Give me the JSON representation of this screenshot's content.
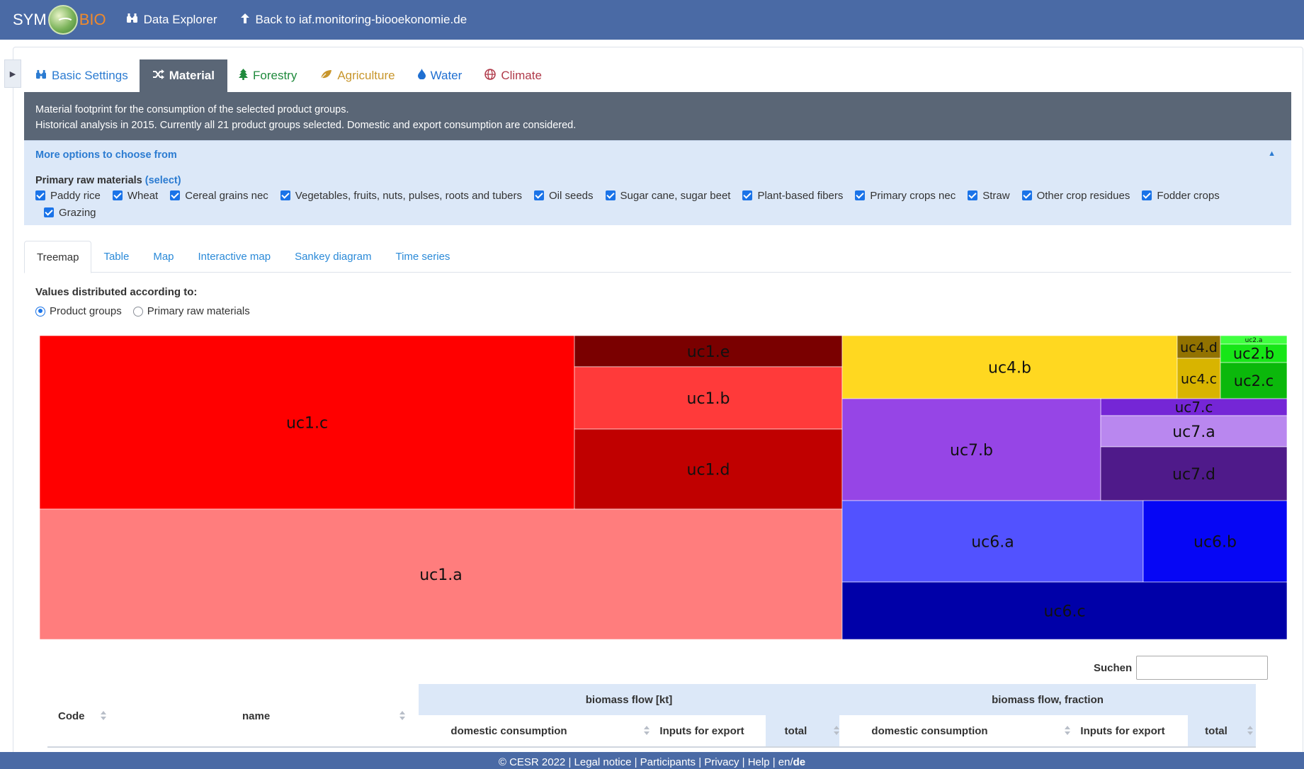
{
  "brand": {
    "left": "SYM",
    "right": "BIO"
  },
  "nav": {
    "data_explorer": "Data Explorer",
    "back": "Back to iaf.monitoring-biooekonomie.de"
  },
  "top_tabs": [
    {
      "label": "Basic Settings",
      "icon": "binoculars-icon",
      "color": "#2b7bd1"
    },
    {
      "label": "Material",
      "icon": "shuffle-icon",
      "color": "#ffffff"
    },
    {
      "label": "Forestry",
      "icon": "tree-icon",
      "color": "#1f8a3c"
    },
    {
      "label": "Agriculture",
      "icon": "leaf-icon",
      "color": "#c8962c"
    },
    {
      "label": "Water",
      "icon": "drop-icon",
      "color": "#1f6fd1"
    },
    {
      "label": "Climate",
      "icon": "globe-icon",
      "color": "#b03a4a"
    }
  ],
  "info": {
    "line1": "Material footprint for the consumption of the selected product groups.",
    "line2": "Historical analysis in 2015. Currently all 21 product groups selected. Domestic and export consumption are considered."
  },
  "options": {
    "header": "More options to choose from",
    "primary_label": "Primary raw materials",
    "select_label": "(select)",
    "materials": [
      "Paddy rice",
      "Wheat",
      "Cereal grains nec",
      "Vegetables, fruits, nuts, pulses, roots and tubers",
      "Oil seeds",
      "Sugar cane, sugar beet",
      "Plant-based fibers",
      "Primary crops nec",
      "Straw",
      "Other crop residues",
      "Fodder crops",
      "Grazing"
    ]
  },
  "sub_tabs": [
    "Treemap",
    "Table",
    "Map",
    "Interactive map",
    "Sankey diagram",
    "Time series"
  ],
  "distribution": {
    "label": "Values distributed according to:",
    "options": [
      "Product groups",
      "Primary raw materials"
    ],
    "selected": "Product groups"
  },
  "chart_data": {
    "type": "treemap",
    "tiles": [
      {
        "label": "uc1.c",
        "color": "#ff0000"
      },
      {
        "label": "uc1.e",
        "color": "#7a0000"
      },
      {
        "label": "uc1.b",
        "color": "#ff3a3a"
      },
      {
        "label": "uc1.d",
        "color": "#c00000"
      },
      {
        "label": "uc1.a",
        "color": "#ff7d7d"
      },
      {
        "label": "uc4.b",
        "color": "#ffd820"
      },
      {
        "label": "uc4.d",
        "color": "#927200"
      },
      {
        "label": "uc4.c",
        "color": "#d8b400"
      },
      {
        "label": "uc2.a",
        "color": "#40ff40"
      },
      {
        "label": "uc2.b",
        "color": "#17e617"
      },
      {
        "label": "uc2.c",
        "color": "#0bb80b"
      },
      {
        "label": "uc7.c",
        "color": "#7526d6"
      },
      {
        "label": "uc7.b",
        "color": "#9645e6"
      },
      {
        "label": "uc7.a",
        "color": "#b987ef"
      },
      {
        "label": "uc7.d",
        "color": "#4f1a8a"
      },
      {
        "label": "uc6.a",
        "color": "#5252ff"
      },
      {
        "label": "uc6.b",
        "color": "#0606f5"
      },
      {
        "label": "uc6.c",
        "color": "#0000a8"
      }
    ]
  },
  "search": {
    "label": "Suchen",
    "value": ""
  },
  "table": {
    "code": "Code",
    "name": "name",
    "group1": "biomass flow [kt]",
    "group2": "biomass flow, fraction",
    "dom": "domestic consumption",
    "exp": "Inputs for export",
    "total": "total"
  },
  "footer": {
    "copyright": "© CESR 2022",
    "legal": "Legal notice",
    "participants": "Participants",
    "privacy": "Privacy",
    "help": "Help",
    "en": "en",
    "de": "de"
  }
}
